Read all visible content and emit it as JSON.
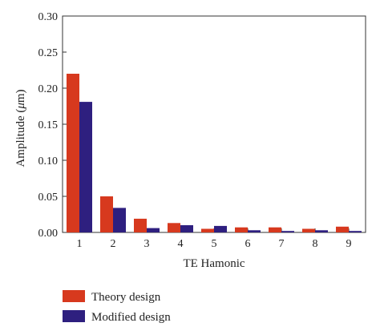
{
  "chart_data": {
    "type": "bar",
    "xlabel": "TE Hamonic",
    "ylabel_main": "Amplitude (",
    "ylabel_unit_mu": "μ",
    "ylabel_unit_rest": "m)",
    "ylim": [
      0,
      0.3
    ],
    "yticks": [
      "0.00",
      "0.05",
      "0.10",
      "0.15",
      "0.20",
      "0.25",
      "0.30"
    ],
    "categories": [
      "1",
      "2",
      "3",
      "4",
      "5",
      "6",
      "7",
      "8",
      "9"
    ],
    "legend_position": "bottom-left",
    "grid": false,
    "series": [
      {
        "name": "Theory design",
        "color": "#d7391e",
        "values": [
          0.22,
          0.05,
          0.019,
          0.013,
          0.005,
          0.007,
          0.007,
          0.005,
          0.008
        ]
      },
      {
        "name": "Modified design",
        "color": "#2e1f7f",
        "values": [
          0.181,
          0.034,
          0.006,
          0.01,
          0.009,
          0.003,
          0.002,
          0.003,
          0.002
        ]
      }
    ]
  }
}
